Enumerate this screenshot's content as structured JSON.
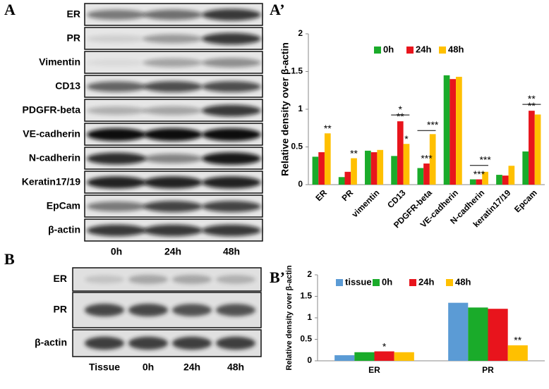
{
  "panels": {
    "a": "A",
    "a_prime": "A’",
    "b": "B",
    "b_prime": "B’"
  },
  "blot_a": {
    "rows": [
      "ER",
      "PR",
      "Vimentin",
      "CD13",
      "PDGFR-beta",
      "VE-cadherin",
      "N-cadherin",
      "Keratin17/19",
      "EpCam",
      "β-actin"
    ],
    "lanes": [
      "0h",
      "24h",
      "48h"
    ]
  },
  "blot_b": {
    "rows": [
      "ER",
      "PR",
      "β-actin"
    ],
    "lanes": [
      "Tissue",
      "0h",
      "24h",
      "48h"
    ]
  },
  "chart_data": [
    {
      "type": "bar",
      "ylabel": "Relative density over β-actin",
      "categories": [
        "ER",
        "PR",
        "vimentin",
        "CD13",
        "PDGFR-beta",
        "VE-cadherin",
        "N-cadherin",
        "keratin17/19",
        "Epcam"
      ],
      "series": [
        {
          "name": "0h",
          "color": "#1aab2a",
          "values": [
            0.37,
            0.1,
            0.45,
            0.38,
            0.22,
            1.45,
            0.07,
            0.13,
            0.44
          ]
        },
        {
          "name": "24h",
          "color": "#e8141c",
          "values": [
            0.43,
            0.17,
            0.43,
            0.84,
            0.28,
            1.4,
            0.07,
            0.12,
            0.98
          ]
        },
        {
          "name": "48h",
          "color": "#ffc000",
          "values": [
            0.68,
            0.35,
            0.46,
            0.54,
            0.67,
            1.43,
            0.17,
            0.25,
            0.93
          ]
        }
      ],
      "ylim": [
        0,
        2
      ],
      "yticks": [
        0,
        0.5,
        1,
        1.5,
        2
      ],
      "annotations": [
        "**",
        "**",
        "*",
        "**",
        "*",
        "***",
        "***",
        "***",
        "***",
        "**",
        "**"
      ]
    },
    {
      "type": "bar",
      "ylabel": "Relative density over β-actin",
      "categories": [
        "ER",
        "PR"
      ],
      "series": [
        {
          "name": "tissue",
          "color": "#5b9bd5",
          "values": [
            0.13,
            1.35
          ]
        },
        {
          "name": "0h",
          "color": "#1aab2a",
          "values": [
            0.2,
            1.24
          ]
        },
        {
          "name": "24h",
          "color": "#e8141c",
          "values": [
            0.22,
            1.21
          ]
        },
        {
          "name": "48h",
          "color": "#ffc000",
          "values": [
            0.2,
            0.36
          ]
        }
      ],
      "ylim": [
        0,
        2
      ],
      "yticks": [
        0,
        0.5,
        1,
        1.5,
        2
      ],
      "annotations": [
        "*",
        "**"
      ]
    }
  ]
}
